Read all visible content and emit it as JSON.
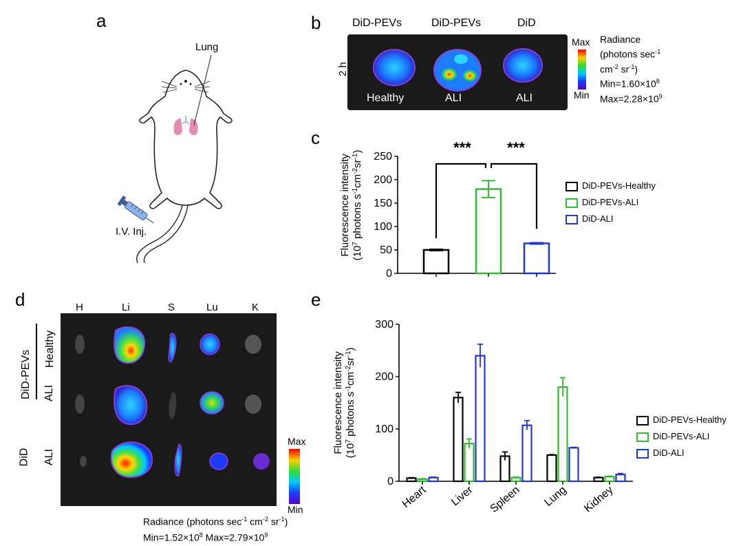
{
  "panels": {
    "a": {
      "letter": "a",
      "lung_label": "Lung",
      "injection_label": "I.V. Inj."
    },
    "b": {
      "letter": "b",
      "time_label": "2 h",
      "columns": [
        "DiD-PEVs",
        "DiD-PEVs",
        "DiD"
      ],
      "conditions": [
        "Healthy",
        "ALI",
        "ALI"
      ],
      "scale_max": "Max",
      "scale_min": "Min",
      "radiance_line1": "Radiance",
      "radiance_line2": "(photons sec",
      "radiance_line3": "cm",
      "radiance_line3b": " sr",
      "radiance_line3c": ")",
      "min_value": "Min=1.60×10",
      "min_exp": "8",
      "max_value": "Max=2.28×10",
      "max_exp": "9"
    },
    "c": {
      "letter": "c",
      "significance": [
        "***",
        "***"
      ]
    },
    "d": {
      "letter": "d",
      "organ_headers": [
        "H",
        "Li",
        "S",
        "Lu",
        "K"
      ],
      "row_group_label": "DiD-PEVs",
      "row_labels": [
        "Healthy",
        "ALI",
        "ALI"
      ],
      "row_group_label2": "DiD",
      "scale_max": "Max",
      "scale_min": "Min",
      "radiance_a": "Radiance (photons sec",
      "radiance_b": " cm",
      "radiance_c": " sr",
      "radiance_d": ")",
      "minmax_a": "Min=1.52×10",
      "minmax_b": " Max=2.79×10",
      "min_exp": "8",
      "max_exp": "9"
    },
    "e": {
      "letter": "e"
    }
  },
  "colors": {
    "healthy": "#000000",
    "ali_pevs": "#2ebd2e",
    "did_ali": "#1f35d6"
  },
  "chart_data": [
    {
      "id": "c",
      "type": "bar",
      "ylabel_line1": "Fluorescence intensity",
      "ylabel_line2": "(10",
      "ylabel_exp7": "7",
      "ylabel_rest": " photons s",
      "ylabel_expm1": "-1",
      "ylabel_cm": "cm",
      "ylabel_expm2": "-2",
      "ylabel_sr": "sr",
      "ylabel_end": ")",
      "ylim": [
        0,
        250
      ],
      "yticks": [
        "0",
        "50",
        "100",
        "150",
        "200",
        "250"
      ],
      "series": [
        {
          "name": "DiD-PEVs-Healthy",
          "values": [
            50
          ],
          "errors": [
            1.5
          ]
        },
        {
          "name": "DiD-PEVs-ALI",
          "values": [
            180
          ],
          "errors": [
            18
          ]
        },
        {
          "name": "DiD-ALI",
          "values": [
            64
          ],
          "errors": [
            1.5
          ]
        }
      ],
      "legend": "right"
    },
    {
      "id": "e",
      "type": "bar",
      "ylabel_line1": "Fluorescence intensity",
      "ylabel_line2": "(10",
      "ylabel_exp7": "7",
      "ylabel_rest": " photons s",
      "ylabel_expm1": "-1",
      "ylabel_cm": "cm",
      "ylabel_expm2": "-2",
      "ylabel_sr": "sr",
      "ylabel_end": ")",
      "ylim": [
        0,
        300
      ],
      "yticks": [
        "0",
        "100",
        "200",
        "300"
      ],
      "categories": [
        "Heart",
        "Liver",
        "Spleen",
        "Lung",
        "Kidney"
      ],
      "series": [
        {
          "name": "DiD-PEVs-Healthy",
          "values": [
            6,
            160,
            48,
            50,
            7
          ],
          "errors": [
            1,
            10,
            8,
            1,
            1
          ]
        },
        {
          "name": "DiD-PEVs-ALI",
          "values": [
            4,
            72,
            7,
            180,
            9
          ],
          "errors": [
            1,
            9,
            1,
            18,
            1
          ]
        },
        {
          "name": "DiD-ALI",
          "values": [
            7,
            240,
            107,
            64,
            13
          ],
          "errors": [
            1,
            22,
            9,
            1,
            2
          ]
        }
      ],
      "legend": "right"
    }
  ]
}
